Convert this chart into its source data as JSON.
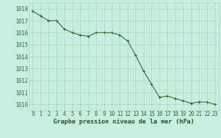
{
  "hours": [
    0,
    1,
    2,
    3,
    4,
    5,
    6,
    7,
    8,
    9,
    10,
    11,
    12,
    13,
    14,
    15,
    16,
    17,
    18,
    19,
    20,
    21,
    22,
    23
  ],
  "pressure": [
    1017.8,
    1017.4,
    1017.0,
    1017.0,
    1016.3,
    1016.0,
    1015.8,
    1015.7,
    1016.0,
    1016.0,
    1016.0,
    1015.8,
    1015.3,
    1014.1,
    1012.8,
    1011.7,
    1010.6,
    1010.7,
    1010.5,
    1010.3,
    1010.1,
    1010.2,
    1010.2,
    1010.0
  ],
  "ylim_min": 1009.5,
  "ylim_max": 1018.5,
  "yticks": [
    1010,
    1011,
    1012,
    1013,
    1014,
    1015,
    1016,
    1017,
    1018
  ],
  "line_color": "#2d6a2d",
  "marker_color": "#2d6a2d",
  "bg_color": "#c8eee0",
  "grid_color": "#a8d8c0",
  "xlabel": "Graphe pression niveau de la mer (hPa)",
  "xlabel_color": "#1a5c1a",
  "tick_label_color": "#2d6a2d",
  "tick_label_size": 5.5,
  "xlabel_size": 6.5,
  "xlim_min": -0.5,
  "xlim_max": 23.5
}
